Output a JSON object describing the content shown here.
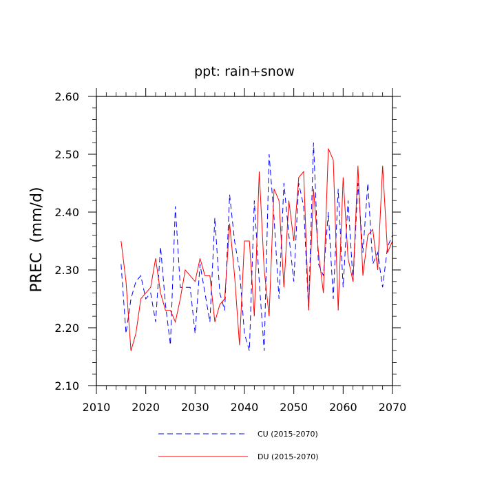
{
  "chart_data": {
    "type": "line",
    "title": "ppt: rain+snow",
    "xlabel": "",
    "ylabel": "PREC  (mm/d)",
    "xlim": [
      2010,
      2070
    ],
    "ylim": [
      2.1,
      2.6
    ],
    "xticks": [
      2010,
      2020,
      2030,
      2040,
      2050,
      2060,
      2070
    ],
    "xtick_labels": [
      "2010",
      "2020",
      "2030",
      "2040",
      "2050",
      "2060",
      "2070"
    ],
    "yticks": [
      2.1,
      2.2,
      2.3,
      2.4,
      2.5,
      2.6
    ],
    "ytick_labels": [
      "2.10",
      "2.20",
      "2.30",
      "2.40",
      "2.50",
      "2.60"
    ],
    "legend_position": "bottom",
    "series": [
      {
        "name": "CU (2015-2070)",
        "color": "#0000ff",
        "style": "dashed",
        "x": [
          2015,
          2016,
          2017,
          2018,
          2019,
          2020,
          2021,
          2022,
          2023,
          2024,
          2025,
          2026,
          2027,
          2028,
          2029,
          2030,
          2031,
          2032,
          2033,
          2034,
          2035,
          2036,
          2037,
          2038,
          2039,
          2040,
          2041,
          2042,
          2043,
          2044,
          2045,
          2046,
          2047,
          2048,
          2049,
          2050,
          2051,
          2052,
          2053,
          2054,
          2055,
          2056,
          2057,
          2058,
          2059,
          2060,
          2061,
          2062,
          2063,
          2064,
          2065,
          2066,
          2067,
          2068,
          2069,
          2070
        ],
        "values": [
          2.31,
          2.19,
          2.25,
          2.28,
          2.29,
          2.25,
          2.26,
          2.21,
          2.34,
          2.24,
          2.17,
          2.41,
          2.27,
          2.27,
          2.27,
          2.19,
          2.31,
          2.26,
          2.21,
          2.39,
          2.26,
          2.23,
          2.43,
          2.35,
          2.3,
          2.19,
          2.16,
          2.42,
          2.28,
          2.16,
          2.5,
          2.39,
          2.25,
          2.45,
          2.36,
          2.28,
          2.45,
          2.41,
          2.23,
          2.52,
          2.31,
          2.29,
          2.4,
          2.25,
          2.44,
          2.27,
          2.42,
          2.28,
          2.45,
          2.33,
          2.45,
          2.31,
          2.33,
          2.27,
          2.34,
          2.36
        ]
      },
      {
        "name": "DU (2015-2070)",
        "color": "#ff0000",
        "style": "solid",
        "x": [
          2015,
          2016,
          2017,
          2018,
          2019,
          2020,
          2021,
          2022,
          2023,
          2024,
          2025,
          2026,
          2027,
          2028,
          2029,
          2030,
          2031,
          2032,
          2033,
          2034,
          2035,
          2036,
          2037,
          2038,
          2039,
          2040,
          2041,
          2042,
          2043,
          2044,
          2045,
          2046,
          2047,
          2048,
          2049,
          2050,
          2051,
          2052,
          2053,
          2054,
          2055,
          2056,
          2057,
          2058,
          2059,
          2060,
          2061,
          2062,
          2063,
          2064,
          2065,
          2066,
          2067,
          2068,
          2069,
          2070
        ],
        "values": [
          2.35,
          2.28,
          2.16,
          2.19,
          2.25,
          2.26,
          2.27,
          2.32,
          2.26,
          2.23,
          2.23,
          2.21,
          2.25,
          2.3,
          2.29,
          2.28,
          2.32,
          2.29,
          2.29,
          2.21,
          2.24,
          2.25,
          2.38,
          2.29,
          2.17,
          2.35,
          2.35,
          2.22,
          2.47,
          2.3,
          2.22,
          2.44,
          2.42,
          2.27,
          2.42,
          2.35,
          2.46,
          2.47,
          2.23,
          2.44,
          2.33,
          2.26,
          2.51,
          2.49,
          2.23,
          2.46,
          2.32,
          2.28,
          2.48,
          2.29,
          2.36,
          2.37,
          2.3,
          2.48,
          2.33,
          2.35
        ]
      }
    ]
  }
}
